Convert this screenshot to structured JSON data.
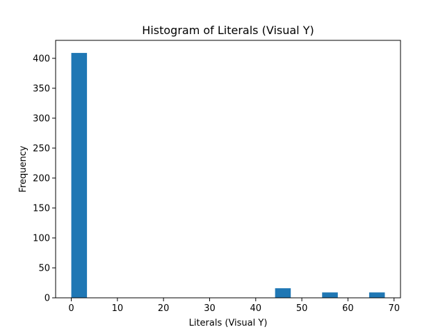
{
  "chart_data": {
    "type": "bar",
    "title": "Histogram of Literals (Visual Y)",
    "xlabel": "Literals (Visual Y)",
    "ylabel": "Frequency",
    "xlim": [
      -3.4,
      71.4
    ],
    "ylim": [
      0,
      430
    ],
    "xticks": [
      0,
      10,
      20,
      30,
      40,
      50,
      60,
      70
    ],
    "yticks": [
      0,
      50,
      100,
      150,
      200,
      250,
      300,
      350,
      400
    ],
    "bin_width": 3.4,
    "bins": [
      {
        "x0": 0.0,
        "count": 409
      },
      {
        "x0": 3.4,
        "count": 0
      },
      {
        "x0": 6.8,
        "count": 0
      },
      {
        "x0": 10.2,
        "count": 0
      },
      {
        "x0": 13.6,
        "count": 0
      },
      {
        "x0": 17.0,
        "count": 0
      },
      {
        "x0": 20.4,
        "count": 0
      },
      {
        "x0": 23.8,
        "count": 0
      },
      {
        "x0": 27.2,
        "count": 0
      },
      {
        "x0": 30.6,
        "count": 0
      },
      {
        "x0": 34.0,
        "count": 0
      },
      {
        "x0": 37.4,
        "count": 0
      },
      {
        "x0": 40.8,
        "count": 0
      },
      {
        "x0": 44.2,
        "count": 16
      },
      {
        "x0": 47.6,
        "count": 0
      },
      {
        "x0": 51.0,
        "count": 0
      },
      {
        "x0": 54.4,
        "count": 9
      },
      {
        "x0": 57.8,
        "count": 0
      },
      {
        "x0": 61.2,
        "count": 0
      },
      {
        "x0": 64.6,
        "count": 9
      }
    ],
    "bar_color": "#1f77b4",
    "grid": false,
    "legend": "none"
  }
}
